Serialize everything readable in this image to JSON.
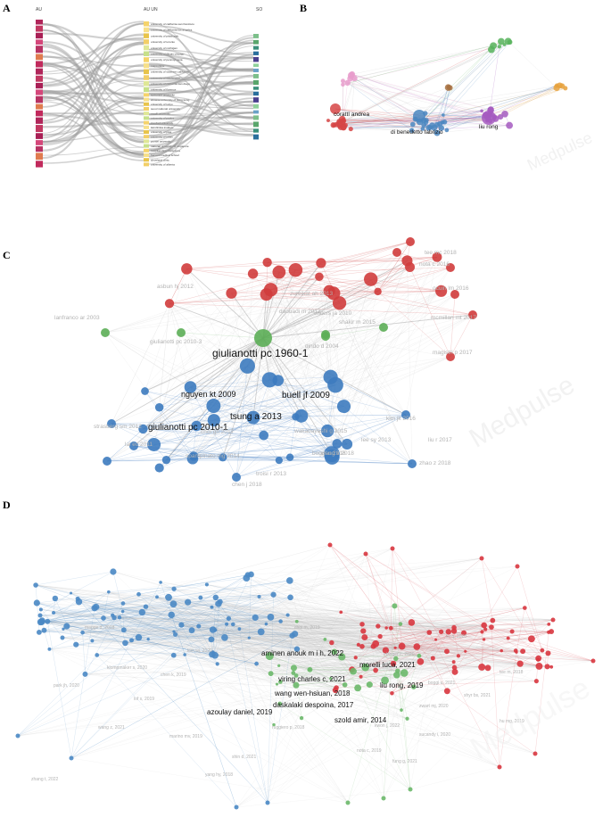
{
  "panels": {
    "A": {
      "letter": "A",
      "columns": [
        "AU",
        "AU UN",
        "SO"
      ],
      "authors": [
        "",
        "",
        "",
        "",
        "",
        "",
        "",
        "",
        "",
        "",
        "",
        "",
        "",
        "",
        "",
        "",
        "",
        "",
        "",
        "",
        ""
      ],
      "affiliations": [
        "university of california san francisco",
        "university of california los angeles",
        "university of pittsburgh",
        "university of toronto",
        "university of michigan",
        "university of illinois chicago",
        "university of pennsylvania",
        "mayo clinic",
        "university of southern california",
        "university of washington",
        "university of california san diego",
        "university of florence",
        "sorbonne university",
        "chinese university of hong kong",
        "university of tokyo",
        "seoul national university",
        "mcgill university",
        "university of padua",
        "stanford university",
        "karolinska institute",
        "university of pisa",
        "university of milan",
        "yonsei university",
        "national university of singapore",
        "hospital clinic barcelona",
        "harvard medical school",
        "cleveland clinic",
        "university of alberta"
      ],
      "sources": [
        "",
        "",
        "",
        "",
        "",
        "",
        "",
        "",
        "",
        "",
        "",
        "",
        "",
        "",
        "",
        "",
        "",
        ""
      ]
    },
    "B": {
      "letter": "B",
      "node_labels": [
        "corattI andrea",
        "di benedetto fabrizio",
        "liu rong"
      ],
      "watermark": "Medpulse"
    },
    "C": {
      "letter": "C",
      "major_labels": [
        "giulianotti pc 1960-1",
        "buell jf 2009",
        "tsung a 2013",
        "giulianotti pc 2010-1",
        "nguyen kt 2009"
      ],
      "minor_labels": [
        "dindo d 2004",
        "giulianotti pc 2010-3",
        "daouadi m 2012",
        "waters ja 2010",
        "chen j 2018",
        "spampinato mg 2014",
        "troisi r 2013",
        "wakabayashi g 2015",
        "boggi u 2016",
        "liu r 2017",
        "lai ec 2011",
        "strasberg sm 2012",
        "zureikat ah 2013",
        "tee mc 2018",
        "ocuin lm 2016",
        "asbun hj 2012",
        "shakir m 2015",
        "mcmillan mt 2017",
        "nota c 2016",
        "magistri p 2017",
        "lanfranco ar 2003",
        "kim jk 2016",
        "zhao z 2018",
        "lee sy 2013",
        "choi gh 2017",
        "wang x 2018"
      ],
      "watermark": "Medpulse"
    },
    "D": {
      "letter": "D",
      "major_labels": [
        "aminen anouk m i h, 2022",
        "morelli luca, 2021",
        "viring charles c, 2021",
        "liu rong, 2019",
        "wang wen-hsiuan, 2018",
        "daskalaki despoina, 2017",
        "azoulay daniel, 2019",
        "szold amir, 2014"
      ],
      "minor_labels": [
        "ruggiero p, 2018",
        "ebinger c, 2020",
        "boggi u, 2021",
        "chen k, 2019",
        "kim wj, 2020",
        "zwart mj, 2020",
        "shyr bs, 2021",
        "lof s, 2019",
        "klompmaker s, 2020",
        "tee m, 2018",
        "magge d, 2018",
        "nota c, 2019",
        "sucandy i, 2020",
        "marino mv, 2019",
        "fung g, 2021",
        "yang hy, 2018",
        "kwon j, 2022",
        "wang z, 2021",
        "hu mg, 2019",
        "park jh, 2020",
        "liu q, 2020",
        "choi m, 2019",
        "shin d, 2021",
        "zhang t, 2022"
      ],
      "watermark": "Medpulse"
    }
  }
}
